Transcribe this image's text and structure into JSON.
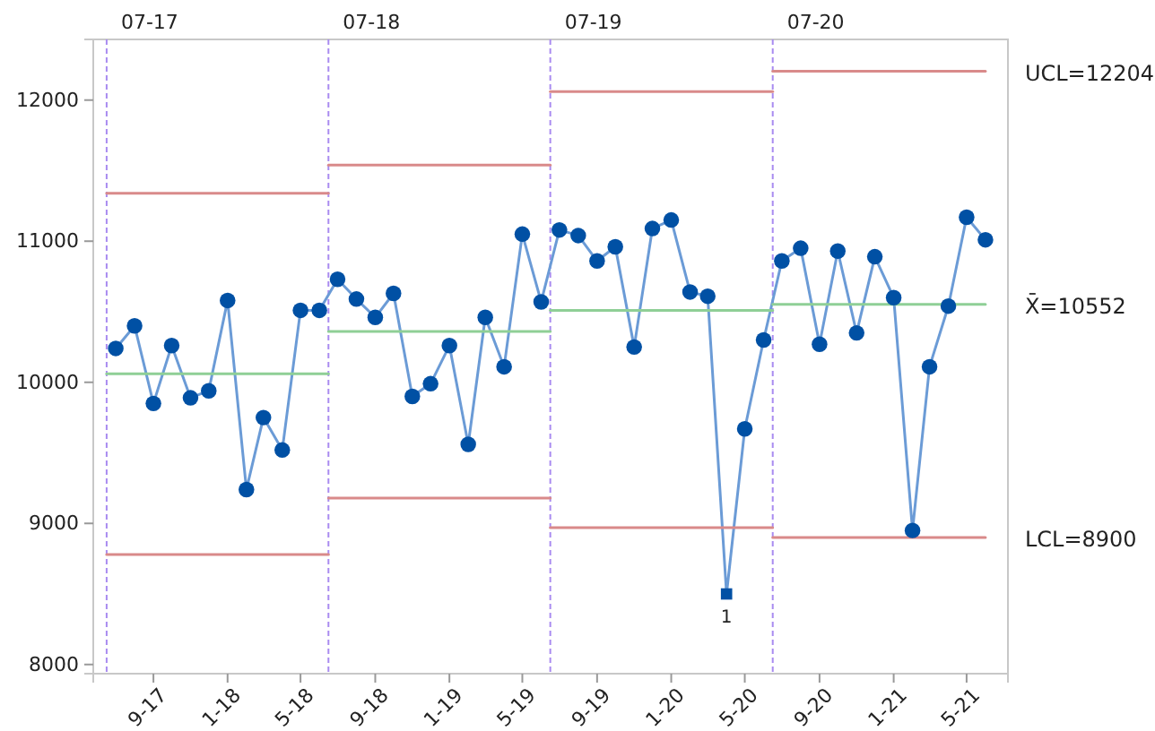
{
  "chart_data": {
    "type": "line",
    "x": [
      "2017-07",
      "2017-08",
      "2017-09",
      "2017-10",
      "2017-11",
      "2017-12",
      "2018-01",
      "2018-02",
      "2018-03",
      "2018-04",
      "2018-05",
      "2018-06",
      "2018-07",
      "2018-08",
      "2018-09",
      "2018-10",
      "2018-11",
      "2018-12",
      "2019-01",
      "2019-02",
      "2019-03",
      "2019-04",
      "2019-05",
      "2019-06",
      "2019-07",
      "2019-08",
      "2019-09",
      "2019-10",
      "2019-11",
      "2019-12",
      "2020-01",
      "2020-02",
      "2020-03",
      "2020-04",
      "2020-05",
      "2020-06",
      "2020-07",
      "2020-08",
      "2020-09",
      "2020-10",
      "2020-11",
      "2020-12",
      "2021-01",
      "2021-02",
      "2021-03",
      "2021-04",
      "2021-05",
      "2021-06"
    ],
    "series": [
      {
        "color": "#6b9bd6",
        "marker": "none",
        "values": [
          10240,
          10400,
          9850,
          10260,
          9890,
          9940,
          10580,
          9240,
          9750,
          9520,
          10510,
          10510,
          10730,
          10590,
          10460,
          10630,
          9900,
          9990,
          10260,
          9560,
          10460,
          10110,
          11050,
          10570,
          11080,
          11040,
          10860,
          10960,
          10250,
          11090,
          11150,
          10640,
          10610,
          8500,
          9670,
          10300,
          10860,
          10950,
          10270,
          10930,
          10350,
          10890,
          10600,
          8950,
          10110,
          10540,
          11170,
          11010
        ]
      },
      {
        "type": "scatter",
        "color": "#0050a4",
        "marker": "circle",
        "values": [
          10240,
          10400,
          9850,
          10260,
          9890,
          9940,
          10580,
          9240,
          9750,
          9520,
          10510,
          10510,
          10730,
          10590,
          10460,
          10630,
          9900,
          9990,
          10260,
          9560,
          10460,
          10110,
          11050,
          10570,
          11080,
          11040,
          10860,
          10960,
          10250,
          11090,
          11150,
          10640,
          10610,
          null,
          9670,
          10300,
          10860,
          10950,
          10270,
          10930,
          10350,
          10890,
          10600,
          8950,
          10110,
          10540,
          11170,
          11010
        ]
      },
      {
        "type": "scatter",
        "color": "#0050a4",
        "marker": "square",
        "x": [
          "2020-04"
        ],
        "values": [
          8500
        ]
      },
      {
        "color": "#d98a8a",
        "x": [
          "2017-06-16",
          "2018-06-16"
        ],
        "values": [
          11340,
          11340
        ]
      },
      {
        "color": "#8fcf96",
        "x": [
          "2017-06-16",
          "2018-06-16"
        ],
        "values": [
          10060,
          10060
        ]
      },
      {
        "color": "#d98a8a",
        "x": [
          "2017-06-16",
          "2018-06-16"
        ],
        "values": [
          8780,
          8780
        ]
      },
      {
        "color": "#d98a8a",
        "x": [
          "2018-06-16",
          "2019-06-16"
        ],
        "values": [
          11540,
          11540
        ]
      },
      {
        "color": "#8fcf96",
        "x": [
          "2018-06-16",
          "2019-06-16"
        ],
        "values": [
          10360,
          10360
        ]
      },
      {
        "color": "#d98a8a",
        "x": [
          "2018-06-16",
          "2019-06-16"
        ],
        "values": [
          9180,
          9180
        ]
      },
      {
        "color": "#d98a8a",
        "x": [
          "2019-06-16",
          "2020-06-16"
        ],
        "values": [
          12060,
          12060
        ]
      },
      {
        "color": "#8fcf96",
        "x": [
          "2019-06-16",
          "2020-06-16"
        ],
        "values": [
          10510,
          10510
        ]
      },
      {
        "color": "#d98a8a",
        "x": [
          "2019-06-16",
          "2020-06-16"
        ],
        "values": [
          8970,
          8970
        ]
      },
      {
        "color": "#d98a8a",
        "x": [
          "2020-06-16",
          "2021-06"
        ],
        "values": [
          12204,
          12204
        ]
      },
      {
        "color": "#8fcf96",
        "x": [
          "2020-06-16",
          "2021-06"
        ],
        "values": [
          10552,
          10552
        ]
      },
      {
        "color": "#d98a8a",
        "x": [
          "2020-06-16",
          "2021-06"
        ],
        "values": [
          8900,
          8900
        ]
      }
    ],
    "ref_lines": [
      {
        "axis": "x",
        "value": "2017-06-16",
        "label": "07-17",
        "color": "#a98bf0",
        "line_style": "dashed"
      },
      {
        "axis": "x",
        "value": "2018-06-16",
        "label": "07-18",
        "color": "#a98bf0",
        "line_style": "dashed"
      },
      {
        "axis": "x",
        "value": "2019-06-16",
        "label": "07-19",
        "color": "#a98bf0",
        "line_style": "dashed"
      },
      {
        "axis": "x",
        "value": "2020-06-16",
        "label": "07-20",
        "color": "#a98bf0",
        "line_style": "dashed"
      }
    ],
    "annotations": [
      {
        "text": "UCL=12204",
        "x": "2021-06",
        "y": 12204
      },
      {
        "text": "X̄=10552",
        "x": "2021-06",
        "y": 10552
      },
      {
        "text": "LCL=8900",
        "x": "2021-06",
        "y": 8900
      },
      {
        "text": "1",
        "x": "2020-04",
        "y": 8500
      }
    ],
    "xlim": [
      "2017-05-25",
      "2021-07-08"
    ],
    "xticks": [
      {
        "value": "2017-09",
        "label": "9-17"
      },
      {
        "value": "2018-01",
        "label": "1-18"
      },
      {
        "value": "2018-05",
        "label": "5-18"
      },
      {
        "value": "2018-09",
        "label": "9-18"
      },
      {
        "value": "2019-01",
        "label": "1-19"
      },
      {
        "value": "2019-05",
        "label": "5-19"
      },
      {
        "value": "2019-09",
        "label": "9-19"
      },
      {
        "value": "2020-01",
        "label": "1-20"
      },
      {
        "value": "2020-05",
        "label": "5-20"
      },
      {
        "value": "2020-09",
        "label": "9-20"
      },
      {
        "value": "2021-01",
        "label": "1-21"
      },
      {
        "value": "2021-05",
        "label": "5-21"
      }
    ],
    "ylim": [
      7935,
      12430
    ],
    "yticks": [
      8000,
      9000,
      10000,
      11000,
      12000
    ],
    "grid": false
  }
}
